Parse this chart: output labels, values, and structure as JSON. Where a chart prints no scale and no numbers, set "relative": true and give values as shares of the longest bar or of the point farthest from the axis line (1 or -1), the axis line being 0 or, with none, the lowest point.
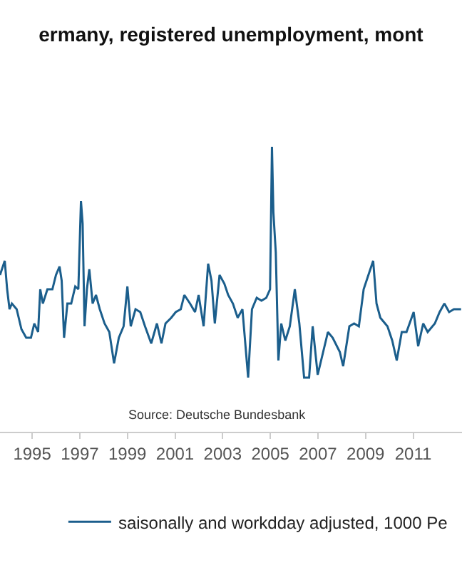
{
  "chart_data": {
    "type": "line",
    "title": "ermany, registered unemployment, mont",
    "annotations": [
      "Source: Deutsche Bundesbank"
    ],
    "relative": true,
    "xlim": [
      1993.65,
      2013.05
    ],
    "xticks": [
      1995,
      1997,
      1999,
      2001,
      2003,
      2005,
      2007,
      2009,
      2011
    ],
    "legend": "bottom",
    "series": [
      {
        "name": "saisonally and workdday adjusted, 1000 Pe",
        "color": "#1b5e8c",
        "x": [
          1993.65,
          1993.85,
          1993.95,
          1994.05,
          1994.15,
          1994.35,
          1994.55,
          1994.75,
          1994.95,
          1995.09,
          1995.25,
          1995.34,
          1995.45,
          1995.64,
          1995.85,
          1996.0,
          1996.15,
          1996.24,
          1996.34,
          1996.48,
          1996.64,
          1996.81,
          1996.94,
          1997.05,
          1997.12,
          1997.2,
          1997.3,
          1997.4,
          1997.54,
          1997.68,
          1997.84,
          1998.04,
          1998.24,
          1998.44,
          1998.64,
          1998.84,
          1999.0,
          1999.14,
          1999.34,
          1999.54,
          1999.74,
          2000.0,
          2000.24,
          2000.43,
          2000.6,
          2000.84,
          2001.03,
          2001.24,
          2001.39,
          2001.63,
          2001.84,
          2001.99,
          2002.2,
          2002.39,
          2002.53,
          2002.67,
          2002.87,
          2003.07,
          2003.23,
          2003.43,
          2003.63,
          2003.83,
          2004.07,
          2004.23,
          2004.43,
          2004.63,
          2004.83,
          2004.99,
          2005.07,
          2005.13,
          2005.23,
          2005.34,
          2005.46,
          2005.63,
          2005.82,
          2006.03,
          2006.22,
          2006.42,
          2006.63,
          2006.78,
          2006.99,
          2007.22,
          2007.42,
          2007.62,
          2007.92,
          2008.06,
          2008.32,
          2008.52,
          2008.72,
          2008.92,
          2009.12,
          2009.32,
          2009.46,
          2009.62,
          2009.92,
          2010.12,
          2010.31,
          2010.52,
          2010.72,
          2011.02,
          2011.21,
          2011.42,
          2011.61,
          2011.91,
          2012.11,
          2012.31,
          2012.51,
          2012.71,
          2013.01
        ],
        "values": [
          0.55,
          0.6,
          0.5,
          0.43,
          0.45,
          0.43,
          0.36,
          0.33,
          0.33,
          0.38,
          0.35,
          0.5,
          0.45,
          0.5,
          0.5,
          0.55,
          0.58,
          0.53,
          0.33,
          0.45,
          0.45,
          0.51,
          0.5,
          0.81,
          0.73,
          0.37,
          0.5,
          0.57,
          0.45,
          0.48,
          0.43,
          0.38,
          0.35,
          0.24,
          0.33,
          0.37,
          0.51,
          0.37,
          0.43,
          0.42,
          0.37,
          0.31,
          0.38,
          0.31,
          0.38,
          0.4,
          0.42,
          0.43,
          0.48,
          0.45,
          0.42,
          0.48,
          0.37,
          0.59,
          0.53,
          0.38,
          0.55,
          0.52,
          0.48,
          0.45,
          0.4,
          0.43,
          0.19,
          0.43,
          0.47,
          0.46,
          0.47,
          0.5,
          1,
          0.77,
          0.63,
          0.25,
          0.38,
          0.32,
          0.37,
          0.5,
          0.38,
          0.19,
          0.19,
          0.37,
          0.2,
          0.28,
          0.35,
          0.33,
          0.28,
          0.23,
          0.37,
          0.38,
          0.37,
          0.5,
          0.55,
          0.6,
          0.45,
          0.4,
          0.37,
          0.32,
          0.25,
          0.35,
          0.35,
          0.42,
          0.3,
          0.38,
          0.35,
          0.38,
          0.42,
          0.45,
          0.42,
          0.43,
          0.43
        ]
      }
    ]
  }
}
